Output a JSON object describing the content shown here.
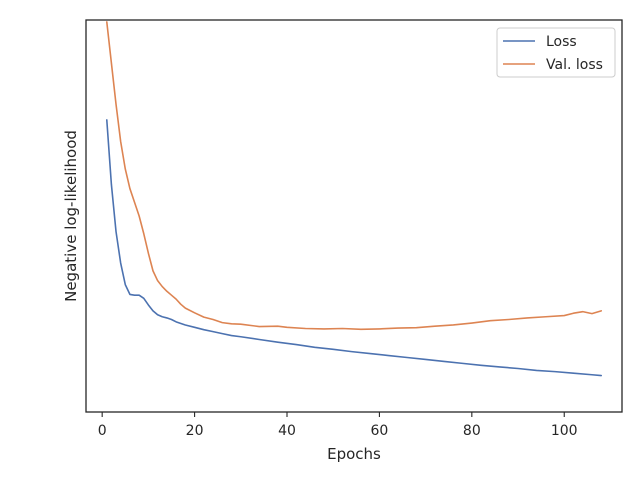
{
  "chart_data": {
    "type": "line",
    "title": "",
    "xlabel": "Epochs",
    "ylabel": "Negative log-likelihood",
    "xlim": [
      -3.5,
      112.5
    ],
    "ylim": [
      0,
      100
    ],
    "xticks": [
      0,
      20,
      40,
      60,
      80,
      100
    ],
    "yticks": [],
    "grid": false,
    "legend_position": "top-right",
    "series": [
      {
        "name": "Loss",
        "color": "#4c72b0",
        "points": [
          [
            1,
            74.5
          ],
          [
            2,
            58
          ],
          [
            3,
            46
          ],
          [
            4,
            38
          ],
          [
            5,
            32.5
          ],
          [
            6,
            30
          ],
          [
            7,
            29.8
          ],
          [
            8,
            29.8
          ],
          [
            9,
            29
          ],
          [
            10,
            27.3
          ],
          [
            11,
            25.8
          ],
          [
            12,
            24.8
          ],
          [
            13,
            24.3
          ],
          [
            14,
            24
          ],
          [
            15,
            23.6
          ],
          [
            16,
            23
          ],
          [
            18,
            22.2
          ],
          [
            20,
            21.6
          ],
          [
            22,
            21
          ],
          [
            24,
            20.5
          ],
          [
            26,
            20
          ],
          [
            28,
            19.5
          ],
          [
            30,
            19.2
          ],
          [
            34,
            18.5
          ],
          [
            38,
            17.8
          ],
          [
            42,
            17.2
          ],
          [
            46,
            16.5
          ],
          [
            50,
            16
          ],
          [
            54,
            15.4
          ],
          [
            58,
            14.9
          ],
          [
            62,
            14.4
          ],
          [
            66,
            13.9
          ],
          [
            70,
            13.4
          ],
          [
            74,
            12.9
          ],
          [
            78,
            12.4
          ],
          [
            82,
            11.9
          ],
          [
            86,
            11.5
          ],
          [
            90,
            11.1
          ],
          [
            94,
            10.6
          ],
          [
            98,
            10.3
          ],
          [
            102,
            9.9
          ],
          [
            106,
            9.5
          ],
          [
            108,
            9.3
          ]
        ]
      },
      {
        "name": "Val. loss",
        "color": "#dd8452",
        "points": [
          [
            1,
            99.5
          ],
          [
            2,
            89
          ],
          [
            3,
            78.5
          ],
          [
            4,
            69
          ],
          [
            5,
            62
          ],
          [
            6,
            57
          ],
          [
            7,
            53.5
          ],
          [
            8,
            50
          ],
          [
            9,
            45.5
          ],
          [
            10,
            40.5
          ],
          [
            11,
            36
          ],
          [
            12,
            33.5
          ],
          [
            13,
            32
          ],
          [
            14,
            30.8
          ],
          [
            15,
            29.8
          ],
          [
            16,
            28.8
          ],
          [
            17,
            27.5
          ],
          [
            18,
            26.5
          ],
          [
            20,
            25.3
          ],
          [
            22,
            24.2
          ],
          [
            24,
            23.6
          ],
          [
            26,
            22.8
          ],
          [
            28,
            22.5
          ],
          [
            30,
            22.4
          ],
          [
            34,
            21.8
          ],
          [
            38,
            21.9
          ],
          [
            40,
            21.6
          ],
          [
            44,
            21.3
          ],
          [
            48,
            21.2
          ],
          [
            52,
            21.3
          ],
          [
            56,
            21.1
          ],
          [
            60,
            21.2
          ],
          [
            64,
            21.4
          ],
          [
            68,
            21.5
          ],
          [
            72,
            21.9
          ],
          [
            76,
            22.2
          ],
          [
            80,
            22.7
          ],
          [
            84,
            23.3
          ],
          [
            88,
            23.6
          ],
          [
            92,
            24
          ],
          [
            96,
            24.3
          ],
          [
            100,
            24.6
          ],
          [
            102,
            25.2
          ],
          [
            104,
            25.6
          ],
          [
            106,
            25.1
          ],
          [
            108,
            25.8
          ]
        ]
      }
    ]
  }
}
